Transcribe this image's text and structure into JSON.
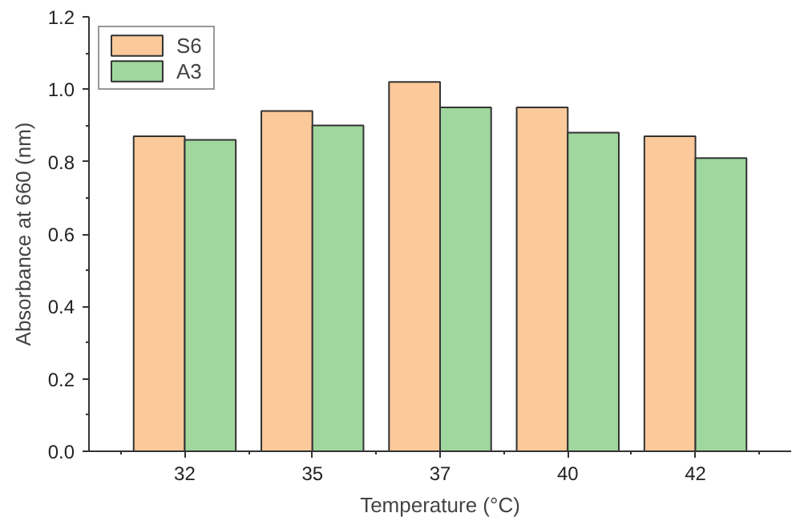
{
  "chart_data": {
    "type": "bar",
    "xlabel": "Temperature (°C)",
    "ylabel": "Absorbance at 660 (nm)",
    "categories": [
      "32",
      "35",
      "37",
      "40",
      "42"
    ],
    "series": [
      {
        "name": "S6",
        "color": "#fbc99a",
        "values": [
          0.87,
          0.94,
          1.02,
          0.95,
          0.87
        ]
      },
      {
        "name": "A3",
        "color": "#a0d79e",
        "values": [
          0.86,
          0.9,
          0.95,
          0.88,
          0.81
        ]
      }
    ],
    "ylim": [
      0,
      1.2
    ],
    "yticks": [
      {
        "value": 0,
        "label": "0.0"
      },
      0.2,
      0.4,
      0.6,
      0.8,
      {
        "value": 1,
        "label": "1.0"
      },
      {
        "value": 1.2,
        "label": "1.2"
      }
    ],
    "grid": false,
    "legend": "top left"
  }
}
